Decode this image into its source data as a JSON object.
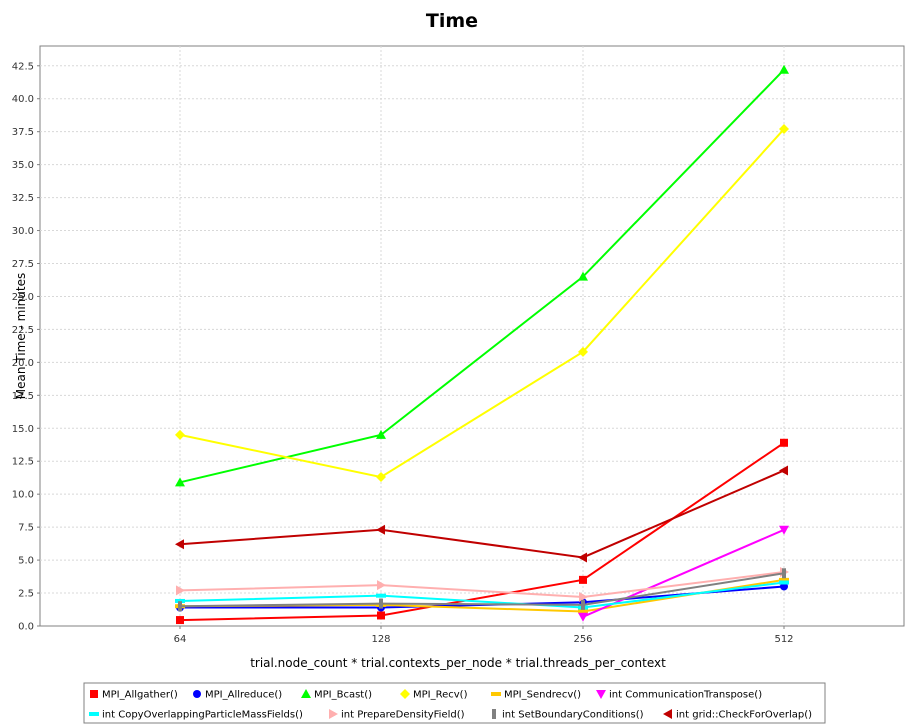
{
  "chart_data": {
    "type": "line",
    "title": "Time",
    "xlabel": "trial.node_count * trial.contexts_per_node * trial.threads_per_context",
    "ylabel": "Mean Time - minutes",
    "categories": [
      "64",
      "128",
      "256",
      "512"
    ],
    "ylim": [
      0,
      44
    ],
    "yticks": [
      "0.0",
      "2.5",
      "5.0",
      "7.5",
      "10.0",
      "12.5",
      "15.0",
      "17.5",
      "20.0",
      "22.5",
      "25.0",
      "27.5",
      "30.0",
      "32.5",
      "35.0",
      "37.5",
      "40.0",
      "42.5"
    ],
    "grid": true,
    "legend_position": "bottom",
    "series": [
      {
        "name": "MPI_Allgather()",
        "color": "#ff0000",
        "marker": "square",
        "values": [
          0.45,
          0.8,
          3.5,
          13.9
        ]
      },
      {
        "name": "MPI_Allreduce()",
        "color": "#0000ff",
        "marker": "circle",
        "values": [
          1.4,
          1.4,
          1.8,
          3.0
        ]
      },
      {
        "name": "MPI_Bcast()",
        "color": "#00ff00",
        "marker": "triangle-up",
        "values": [
          10.9,
          14.5,
          26.5,
          42.2
        ]
      },
      {
        "name": "MPI_Recv()",
        "color": "#ffff00",
        "marker": "diamond",
        "values": [
          14.5,
          11.3,
          20.8,
          37.7
        ]
      },
      {
        "name": "MPI_Sendrecv()",
        "color": "#ffc800",
        "marker": "hbar",
        "values": [
          1.5,
          1.6,
          1.1,
          3.5
        ]
      },
      {
        "name": "int CommunicationTranspose()",
        "color": "#ff00ff",
        "marker": "triangle-down",
        "values": [
          null,
          null,
          0.7,
          7.3
        ]
      },
      {
        "name": "int CopyOverlappingParticleMassFields()",
        "color": "#00ffff",
        "marker": "hbar",
        "values": [
          1.9,
          2.3,
          1.4,
          3.3
        ]
      },
      {
        "name": "int PrepareDensityField()",
        "color": "#ffafaf",
        "marker": "triangle-right",
        "values": [
          2.7,
          3.1,
          2.2,
          4.1
        ]
      },
      {
        "name": "int SetBoundaryConditions()",
        "color": "#808080",
        "marker": "vbar",
        "values": [
          1.5,
          1.7,
          1.6,
          4.0
        ]
      },
      {
        "name": "int grid::CheckForOverlap()",
        "color": "#c00000",
        "marker": "triangle-left",
        "values": [
          6.2,
          7.3,
          5.2,
          11.8
        ]
      }
    ]
  }
}
